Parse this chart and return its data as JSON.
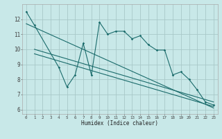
{
  "title": "",
  "xlabel": "Humidex (Indice chaleur)",
  "bg_color": "#c8e8e8",
  "grid_color": "#a8c8c8",
  "line_color": "#1a6b6b",
  "xlim": [
    -0.5,
    23.5
  ],
  "ylim": [
    5.7,
    13.0
  ],
  "xticks": [
    0,
    1,
    2,
    3,
    4,
    5,
    6,
    7,
    8,
    9,
    10,
    11,
    12,
    13,
    14,
    15,
    16,
    17,
    18,
    19,
    20,
    21,
    22,
    23
  ],
  "yticks": [
    6,
    7,
    8,
    9,
    10,
    11,
    12
  ],
  "main_line_x": [
    0,
    1,
    4,
    5,
    6,
    7,
    8,
    9,
    10,
    11,
    12,
    13,
    14,
    15,
    16,
    17,
    18,
    19,
    20,
    21,
    22,
    23
  ],
  "main_line_y": [
    12.5,
    11.6,
    8.8,
    7.5,
    8.3,
    10.4,
    8.3,
    11.8,
    11.0,
    11.2,
    11.2,
    10.7,
    10.9,
    10.3,
    9.95,
    9.95,
    8.3,
    8.5,
    8.0,
    7.3,
    6.5,
    6.3
  ],
  "trend1_x": [
    0,
    23
  ],
  "trend1_y": [
    11.7,
    6.1
  ],
  "trend2_x": [
    1,
    23
  ],
  "trend2_y": [
    10.0,
    6.5
  ],
  "trend3_x": [
    1,
    23
  ],
  "trend3_y": [
    9.7,
    6.2
  ]
}
